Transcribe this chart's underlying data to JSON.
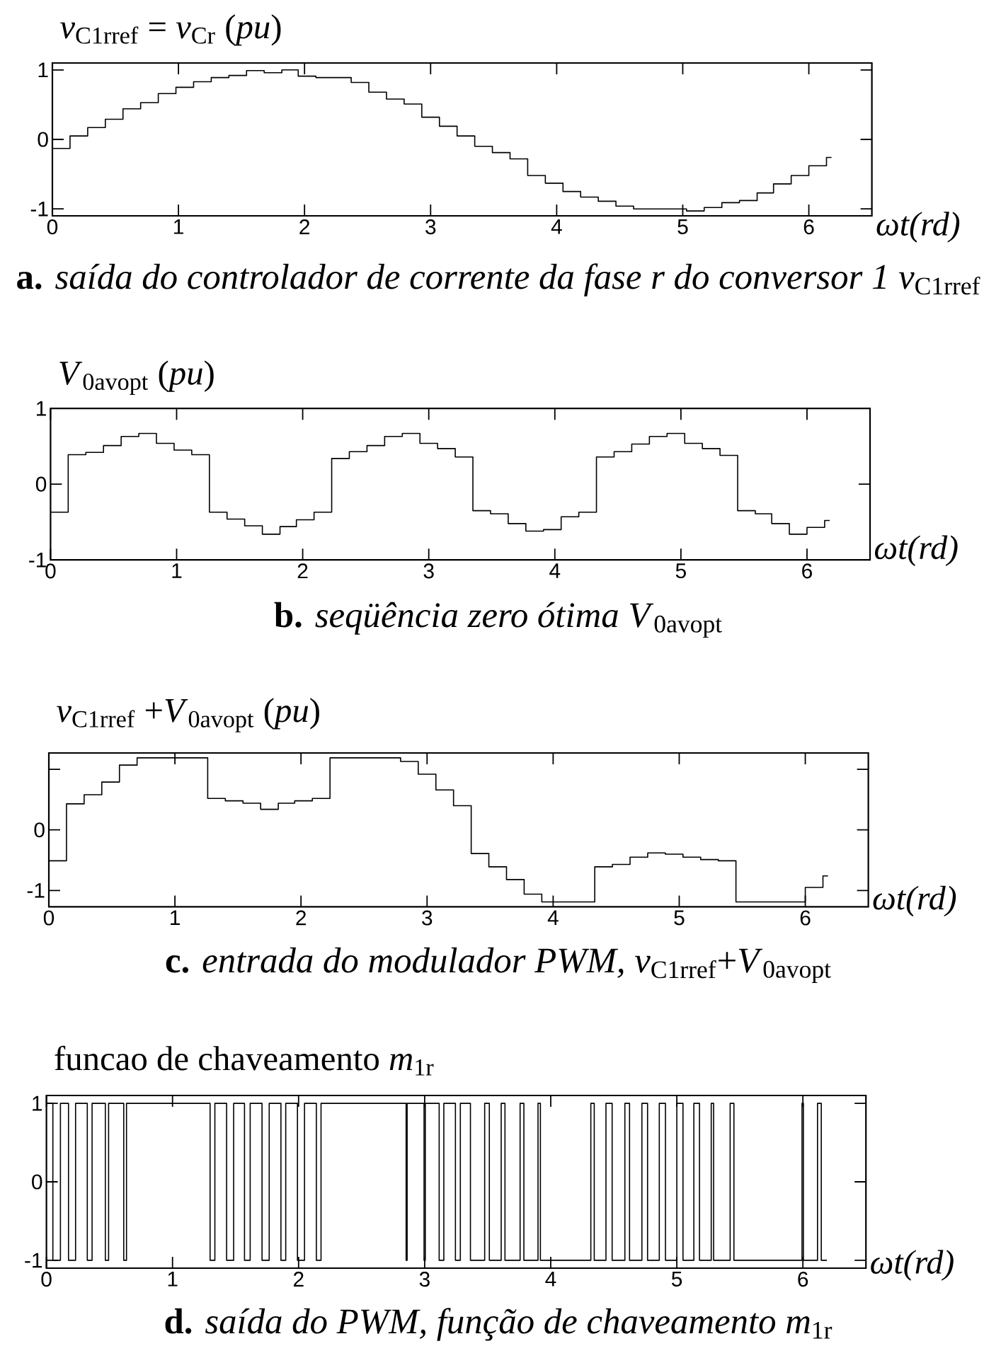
{
  "chart_data": [
    {
      "type": "step",
      "title": "*v*$_{C1rref}$ = *v*$_{Cr}$ (*pu*)",
      "xlabel": "ωt(rd)",
      "annotations": [
        "**a.** *saída do controlador de corrente da fase r do conversor 1* *v*$_{C1rref}$"
      ],
      "color": "#000000",
      "x": [
        0,
        0.14,
        0.28,
        0.42,
        0.56,
        0.7,
        0.84,
        0.98,
        1.12,
        1.26,
        1.4,
        1.54,
        1.68,
        1.82,
        1.95,
        2.09,
        2.23,
        2.37,
        2.51,
        2.65,
        2.79,
        2.93,
        3.07,
        3.21,
        3.35,
        3.49,
        3.63,
        3.77,
        3.91,
        4.05,
        4.19,
        4.33,
        4.47,
        4.61,
        4.75,
        4.89,
        5.03,
        5.17,
        5.31,
        5.45,
        5.59,
        5.72,
        5.86,
        6.0,
        6.14,
        6.18
      ],
      "values": [
        -0.13,
        0.05,
        0.17,
        0.29,
        0.44,
        0.53,
        0.66,
        0.75,
        0.83,
        0.89,
        0.92,
        0.99,
        0.96,
        1.0,
        0.91,
        0.89,
        0.89,
        0.82,
        0.68,
        0.58,
        0.51,
        0.32,
        0.19,
        0.05,
        -0.1,
        -0.19,
        -0.28,
        -0.52,
        -0.63,
        -0.75,
        -0.83,
        -0.89,
        -0.96,
        -1.0,
        -1.0,
        -1.0,
        -1.03,
        -0.98,
        -0.91,
        -0.88,
        -0.77,
        -0.64,
        -0.52,
        -0.38,
        -0.26,
        -0.26
      ],
      "xlim": [
        0,
        6.5
      ],
      "xticks": [
        0,
        1,
        2,
        3,
        4,
        5,
        6
      ],
      "ylim": [
        -1.1,
        1.1
      ],
      "yticks": [
        -1,
        0,
        1
      ]
    },
    {
      "type": "step",
      "title": "*V*$_{0avopt}$ (*pu*)",
      "xlabel": "ωt(rd)",
      "annotations": [
        "**b.** *seqüência zero ótima* *V*$_{0avopt}$"
      ],
      "color": "#000000",
      "x": [
        0,
        0.14,
        0.28,
        0.42,
        0.56,
        0.7,
        0.84,
        0.98,
        1.12,
        1.26,
        1.4,
        1.54,
        1.68,
        1.82,
        1.95,
        2.09,
        2.23,
        2.37,
        2.51,
        2.65,
        2.79,
        2.93,
        3.07,
        3.21,
        3.35,
        3.49,
        3.63,
        3.77,
        3.91,
        4.05,
        4.19,
        4.33,
        4.47,
        4.61,
        4.75,
        4.89,
        5.03,
        5.17,
        5.31,
        5.45,
        5.59,
        5.72,
        5.86,
        6.0,
        6.14,
        6.18
      ],
      "values": [
        -0.37,
        0.39,
        0.42,
        0.51,
        0.63,
        0.67,
        0.54,
        0.45,
        0.39,
        -0.37,
        -0.46,
        -0.55,
        -0.66,
        -0.56,
        -0.47,
        -0.37,
        0.34,
        0.43,
        0.51,
        0.63,
        0.67,
        0.54,
        0.47,
        0.36,
        -0.35,
        -0.39,
        -0.52,
        -0.62,
        -0.6,
        -0.43,
        -0.37,
        0.36,
        0.43,
        0.53,
        0.63,
        0.67,
        0.54,
        0.47,
        0.38,
        -0.35,
        -0.39,
        -0.52,
        -0.66,
        -0.57,
        -0.48,
        -0.48
      ],
      "xlim": [
        0,
        6.5
      ],
      "xticks": [
        0,
        1,
        2,
        3,
        4,
        5,
        6
      ],
      "ylim": [
        -1,
        1
      ],
      "yticks": [
        -1,
        0,
        1
      ]
    },
    {
      "type": "step",
      "title": "*v*$_{C1rref}$ +*V*$_{0avopt}$ (*pu*)",
      "xlabel": "ωt(rd)",
      "annotations": [
        "**c.** *entrada do modulador PWM,* *v*$_{C1rref}$+*V*$_{0avopt}$"
      ],
      "color": "#000000",
      "x": [
        0,
        0.14,
        0.28,
        0.42,
        0.56,
        0.7,
        0.84,
        0.98,
        1.12,
        1.26,
        1.4,
        1.54,
        1.68,
        1.82,
        1.95,
        2.09,
        2.23,
        2.37,
        2.51,
        2.65,
        2.79,
        2.93,
        3.07,
        3.21,
        3.35,
        3.49,
        3.63,
        3.77,
        3.91,
        4.05,
        4.19,
        4.33,
        4.47,
        4.61,
        4.75,
        4.89,
        5.03,
        5.17,
        5.31,
        5.45,
        5.59,
        5.72,
        5.86,
        6.0,
        6.14,
        6.18
      ],
      "values": [
        -0.51,
        0.43,
        0.58,
        0.79,
        1.07,
        1.19,
        1.19,
        1.19,
        1.19,
        0.52,
        0.48,
        0.44,
        0.34,
        0.44,
        0.48,
        0.52,
        1.19,
        1.19,
        1.19,
        1.19,
        1.13,
        0.92,
        0.66,
        0.4,
        -0.39,
        -0.61,
        -0.82,
        -1.06,
        -1.19,
        -1.19,
        -1.19,
        -0.61,
        -0.57,
        -0.45,
        -0.38,
        -0.4,
        -0.45,
        -0.49,
        -0.51,
        -1.19,
        -1.19,
        -1.19,
        -1.19,
        -0.95,
        -0.76,
        -0.76
      ],
      "xlim": [
        0,
        6.5
      ],
      "xticks": [
        0,
        1,
        2,
        3,
        4,
        5,
        6
      ],
      "ylim": [
        -1.27,
        1.27
      ],
      "yticks": [
        -1,
        0,
        {
          "value": 1,
          "label": null
        }
      ]
    },
    {
      "type": "step",
      "title": "funcao de chaveamento *m*$_{1r}$",
      "xlabel": "ωt(rd)",
      "annotations": [
        "**d.** *saída do PWM, função de chaveamento* *m*$_{1r}$"
      ],
      "color": "#000000",
      "x": [
        0,
        0.051,
        0.111,
        0.175,
        0.231,
        0.324,
        0.362,
        0.467,
        0.493,
        0.613,
        0.635,
        1.298,
        1.336,
        1.429,
        1.485,
        1.571,
        1.616,
        1.71,
        1.767,
        1.86,
        1.898,
        1.991,
        2.047,
        2.141,
        2.178,
        2.853,
        2.861,
        2.995,
        3.005,
        3.115,
        3.152,
        3.244,
        3.283,
        3.363,
        3.476,
        3.513,
        3.607,
        3.637,
        3.757,
        3.787,
        3.899,
        3.918,
        4.318,
        4.345,
        4.438,
        4.487,
        4.588,
        4.625,
        4.723,
        4.768,
        4.861,
        4.91,
        5.0,
        5.049,
        5.135,
        5.18,
        5.273,
        5.292,
        5.423,
        5.453,
        5.993,
        6.004,
        6.116,
        6.146,
        6.19
      ],
      "values": [
        1,
        -1,
        1,
        -1,
        1,
        -1,
        1,
        -1,
        1,
        -1,
        1,
        -1,
        1,
        -1,
        1,
        -1,
        1,
        -1,
        1,
        -1,
        1,
        -1,
        1,
        -1,
        1,
        -1,
        1,
        -1,
        1,
        -1,
        1,
        -1,
        1,
        -1,
        1,
        -1,
        1,
        -1,
        1,
        -1,
        1,
        -1,
        1,
        -1,
        1,
        -1,
        1,
        -1,
        1,
        -1,
        1,
        -1,
        1,
        -1,
        1,
        -1,
        1,
        -1,
        1,
        -1,
        1,
        -1,
        1,
        -1,
        -1
      ],
      "xlim": [
        0,
        6.5
      ],
      "xticks": [
        0,
        1,
        2,
        3,
        4,
        5,
        6
      ],
      "ylim": [
        -1.1,
        1.1
      ],
      "yticks": [
        -1,
        0,
        1
      ]
    }
  ]
}
